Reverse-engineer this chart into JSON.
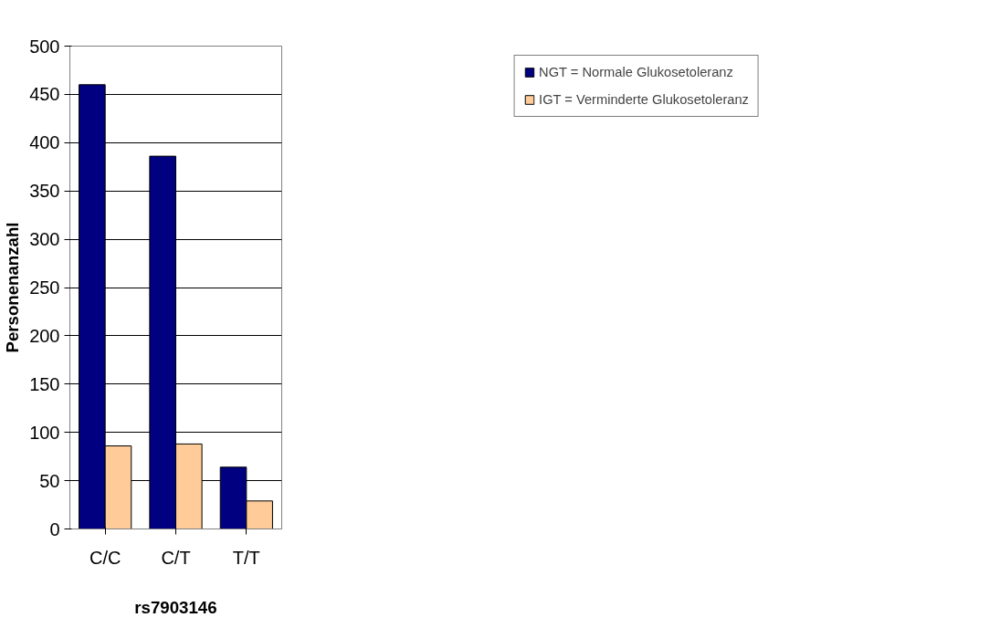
{
  "chart_data": {
    "type": "bar",
    "xlabel": "rs7903146",
    "ylabel": "Personenanzahl",
    "categories": [
      "C/C",
      "C/T",
      "T/T"
    ],
    "series": [
      {
        "name": "NGT = Normale Glukosetoleranz",
        "color": "#000080",
        "values": [
          460,
          386,
          64
        ]
      },
      {
        "name": "IGT = Verminderte Glukosetoleranz",
        "color": "#ffcc99",
        "values": [
          86,
          88,
          29
        ]
      }
    ],
    "ylim": [
      0,
      500
    ],
    "yticks": [
      0,
      50,
      100,
      150,
      200,
      250,
      300,
      350,
      400,
      450,
      500
    ],
    "grid": "y",
    "legend": "top right"
  }
}
